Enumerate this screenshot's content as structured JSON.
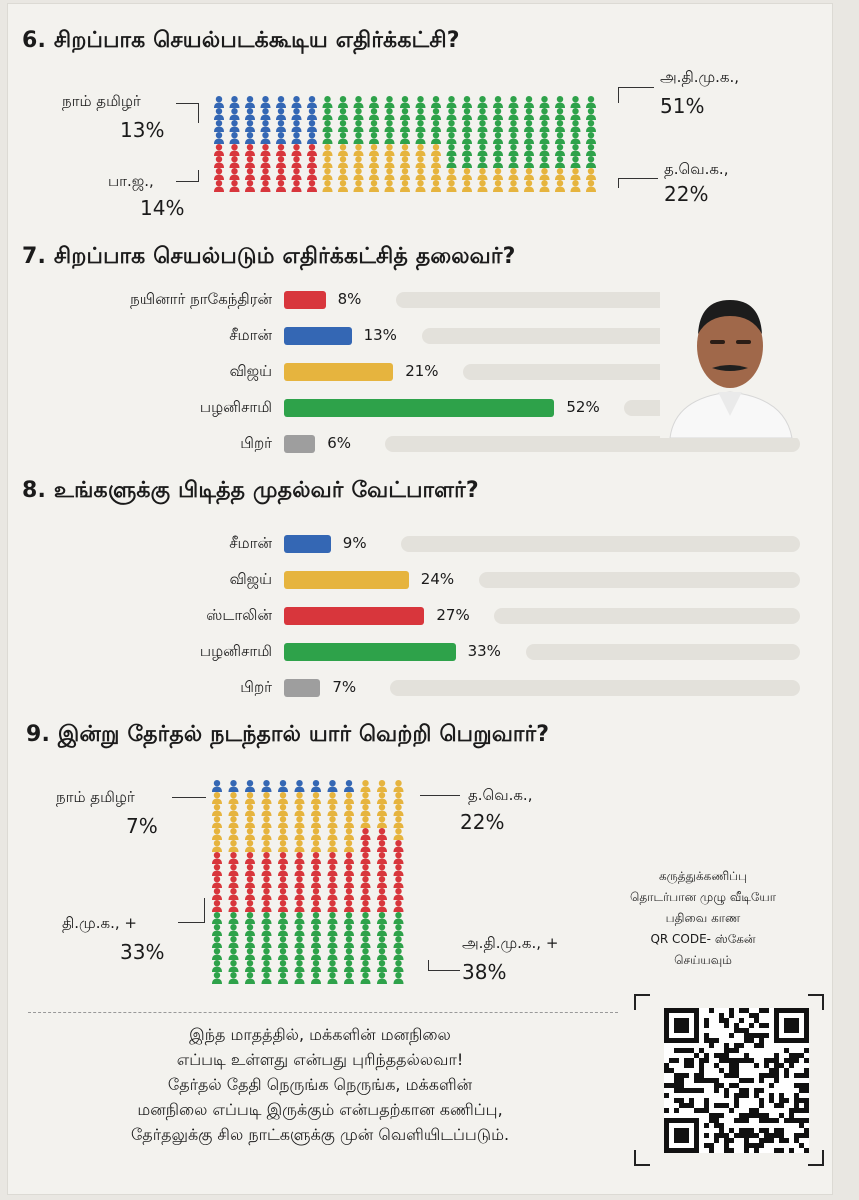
{
  "q6": {
    "title": "6. சிறப்பாக செயல்படக்கூடிய எதிர்க்கட்சி?",
    "labels": [
      {
        "name": "நாம் தமிழர்",
        "value": "13%"
      },
      {
        "name": "பா.ஜ.,",
        "value": "14%"
      },
      {
        "name": "அ.தி.மு.க.,",
        "value": "51%"
      },
      {
        "name": "த.வெ.க.,",
        "value": "22%"
      }
    ]
  },
  "q7": {
    "title": "7. சிறப்பாக செயல்படும் எதிர்க்கட்சித் தலைவர்?",
    "bars": [
      {
        "name": "நயினார் நாகேந்திரன்",
        "label": "8%",
        "value": 8,
        "color": "#d8363c"
      },
      {
        "name": "சீமான்",
        "label": "13%",
        "value": 13,
        "color": "#3467b4"
      },
      {
        "name": "விஜய்",
        "label": "21%",
        "value": 21,
        "color": "#e6b43e"
      },
      {
        "name": "பழனிசாமி",
        "label": "52%",
        "value": 52,
        "color": "#2ea24a"
      },
      {
        "name": "பிறர்",
        "label": "6%",
        "value": 6,
        "color": "#9e9e9e"
      }
    ]
  },
  "q8": {
    "title": "8. உங்களுக்கு பிடித்த முதல்வர் வேட்பாளர்?",
    "bars": [
      {
        "name": "சீமான்",
        "label": "9%",
        "value": 9,
        "color": "#3467b4"
      },
      {
        "name": "விஜய்",
        "label": "24%",
        "value": 24,
        "color": "#e6b43e"
      },
      {
        "name": "ஸ்டாலின்",
        "label": "27%",
        "value": 27,
        "color": "#d8363c"
      },
      {
        "name": "பழனிசாமி",
        "label": "33%",
        "value": 33,
        "color": "#2ea24a"
      },
      {
        "name": "பிறர்",
        "label": "7%",
        "value": 7,
        "color": "#9e9e9e"
      }
    ]
  },
  "q9": {
    "title": "9. இன்று தேர்தல் நடந்தால் யார் வெற்றி பெறுவார்?",
    "labels": [
      {
        "name": "நாம் தமிழர்",
        "value": "7%"
      },
      {
        "name": "த.வெ.க.,",
        "value": "22%"
      },
      {
        "name": "தி.மு.க., +",
        "value": "33%"
      },
      {
        "name": "அ.தி.மு.க., +",
        "value": "38%"
      }
    ]
  },
  "qr_text": [
    "கருத்துக்கணிப்பு",
    "தொடர்பான முழு வீடியோ",
    "பதிவை காண",
    "QR CODE- ஸ்கேன்",
    "செய்யவும்"
  ],
  "footer_lines": [
    "இந்த மாதத்தில், மக்களின் மனநிலை",
    "எப்படி உள்ளது என்பது புரிந்ததல்லவா!",
    "தேர்தல் தேதி நெருங்க நெருங்க, மக்களின்",
    "மனநிலை எப்படி இருக்கும் என்பதற்கான கணிப்பு,",
    "தேர்தலுக்கு சில நாட்களுக்கு முன் வெளியிடப்படும்."
  ],
  "colors": {
    "ntk": "#3467b4",
    "bjp": "#d8363c",
    "admk": "#2ea24a",
    "tvk": "#e6b43e",
    "dmk": "#d8363c",
    "others": "#9e9e9e"
  },
  "chart_data": [
    {
      "type": "waffle",
      "title": "6. சிறப்பாக செயல்படக்கூடிய எதிர்க்கட்சி?",
      "series": [
        {
          "name": "நாம் தமிழர்",
          "value": 13
        },
        {
          "name": "பா.ஜ.,",
          "value": 14
        },
        {
          "name": "அ.தி.மு.க.,",
          "value": 51
        },
        {
          "name": "த.வெ.க.,",
          "value": 22
        }
      ]
    },
    {
      "type": "bar",
      "title": "7. சிறப்பாக செயல்படும் எதிர்க்கட்சித் தலைவர்?",
      "categories": [
        "நயினார் நாகேந்திரன்",
        "சீமான்",
        "விஜய்",
        "பழனிசாமி",
        "பிறர்"
      ],
      "values": [
        8,
        13,
        21,
        52,
        6
      ]
    },
    {
      "type": "bar",
      "title": "8. உங்களுக்கு பிடித்த முதல்வர் வேட்பாளர்?",
      "categories": [
        "சீமான்",
        "விஜய்",
        "ஸ்டாலின்",
        "பழனிசாமி",
        "பிறர்"
      ],
      "values": [
        9,
        24,
        27,
        33,
        7
      ]
    },
    {
      "type": "waffle",
      "title": "9. இன்று தேர்தல் நடந்தால் யார் வெற்றி பெறுவார்?",
      "series": [
        {
          "name": "நாம் தமிழர்",
          "value": 7
        },
        {
          "name": "த.வெ.க.,",
          "value": 22
        },
        {
          "name": "தி.மு.க., +",
          "value": 33
        },
        {
          "name": "அ.தி.மு.க., +",
          "value": 38
        }
      ]
    }
  ]
}
